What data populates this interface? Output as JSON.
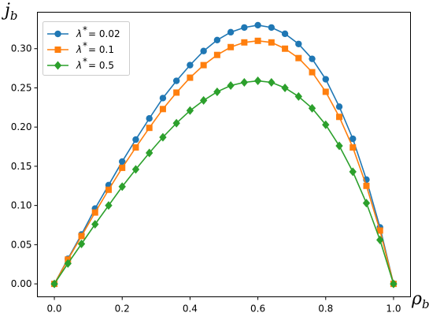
{
  "chart_data": {
    "type": "line",
    "xlabel": "ρ",
    "xlabel_sub": "b",
    "ylabel": "j",
    "ylabel_sub": "b",
    "xlim": [
      -0.05,
      1.05
    ],
    "ylim": [
      -0.0165,
      0.3465
    ],
    "xticks": [
      0.0,
      0.2,
      0.4,
      0.6,
      0.8,
      1.0
    ],
    "xtick_labels": [
      "0.0",
      "0.2",
      "0.4",
      "0.6",
      "0.8",
      "1.0"
    ],
    "yticks": [
      0.0,
      0.05,
      0.1,
      0.15,
      0.2,
      0.25,
      0.3
    ],
    "ytick_labels": [
      "0.00",
      "0.05",
      "0.10",
      "0.15",
      "0.20",
      "0.25",
      "0.30"
    ],
    "grid": false,
    "legend_position": "upper-left",
    "x": [
      0.0,
      0.04,
      0.08,
      0.12,
      0.16,
      0.2,
      0.24,
      0.28,
      0.32,
      0.36,
      0.4,
      0.44,
      0.48,
      0.52,
      0.56,
      0.6,
      0.64,
      0.68,
      0.72,
      0.76,
      0.8,
      0.84,
      0.88,
      0.92,
      0.96,
      1.0
    ],
    "series": [
      {
        "name": "λ* = 0.02",
        "legend_text": "= 0.02",
        "color": "#1f77b4",
        "marker": "circle",
        "values": [
          0.0,
          0.032,
          0.063,
          0.096,
          0.126,
          0.156,
          0.184,
          0.211,
          0.237,
          0.259,
          0.279,
          0.297,
          0.311,
          0.321,
          0.327,
          0.33,
          0.327,
          0.319,
          0.306,
          0.287,
          0.261,
          0.226,
          0.185,
          0.133,
          0.072,
          0.0
        ]
      },
      {
        "name": "λ* = 0.1",
        "legend_text": "= 0.1",
        "color": "#ff7f0e",
        "marker": "square",
        "values": [
          0.0,
          0.031,
          0.061,
          0.091,
          0.12,
          0.148,
          0.174,
          0.199,
          0.223,
          0.244,
          0.263,
          0.279,
          0.292,
          0.302,
          0.308,
          0.31,
          0.308,
          0.3,
          0.288,
          0.27,
          0.245,
          0.213,
          0.174,
          0.125,
          0.068,
          0.0
        ]
      },
      {
        "name": "λ* = 0.5",
        "legend_text": "= 0.5",
        "color": "#2ca02c",
        "marker": "diamond",
        "values": [
          0.0,
          0.026,
          0.051,
          0.076,
          0.1,
          0.124,
          0.146,
          0.167,
          0.187,
          0.205,
          0.221,
          0.234,
          0.245,
          0.253,
          0.257,
          0.259,
          0.257,
          0.25,
          0.239,
          0.224,
          0.203,
          0.176,
          0.143,
          0.103,
          0.056,
          0.0
        ]
      }
    ]
  }
}
